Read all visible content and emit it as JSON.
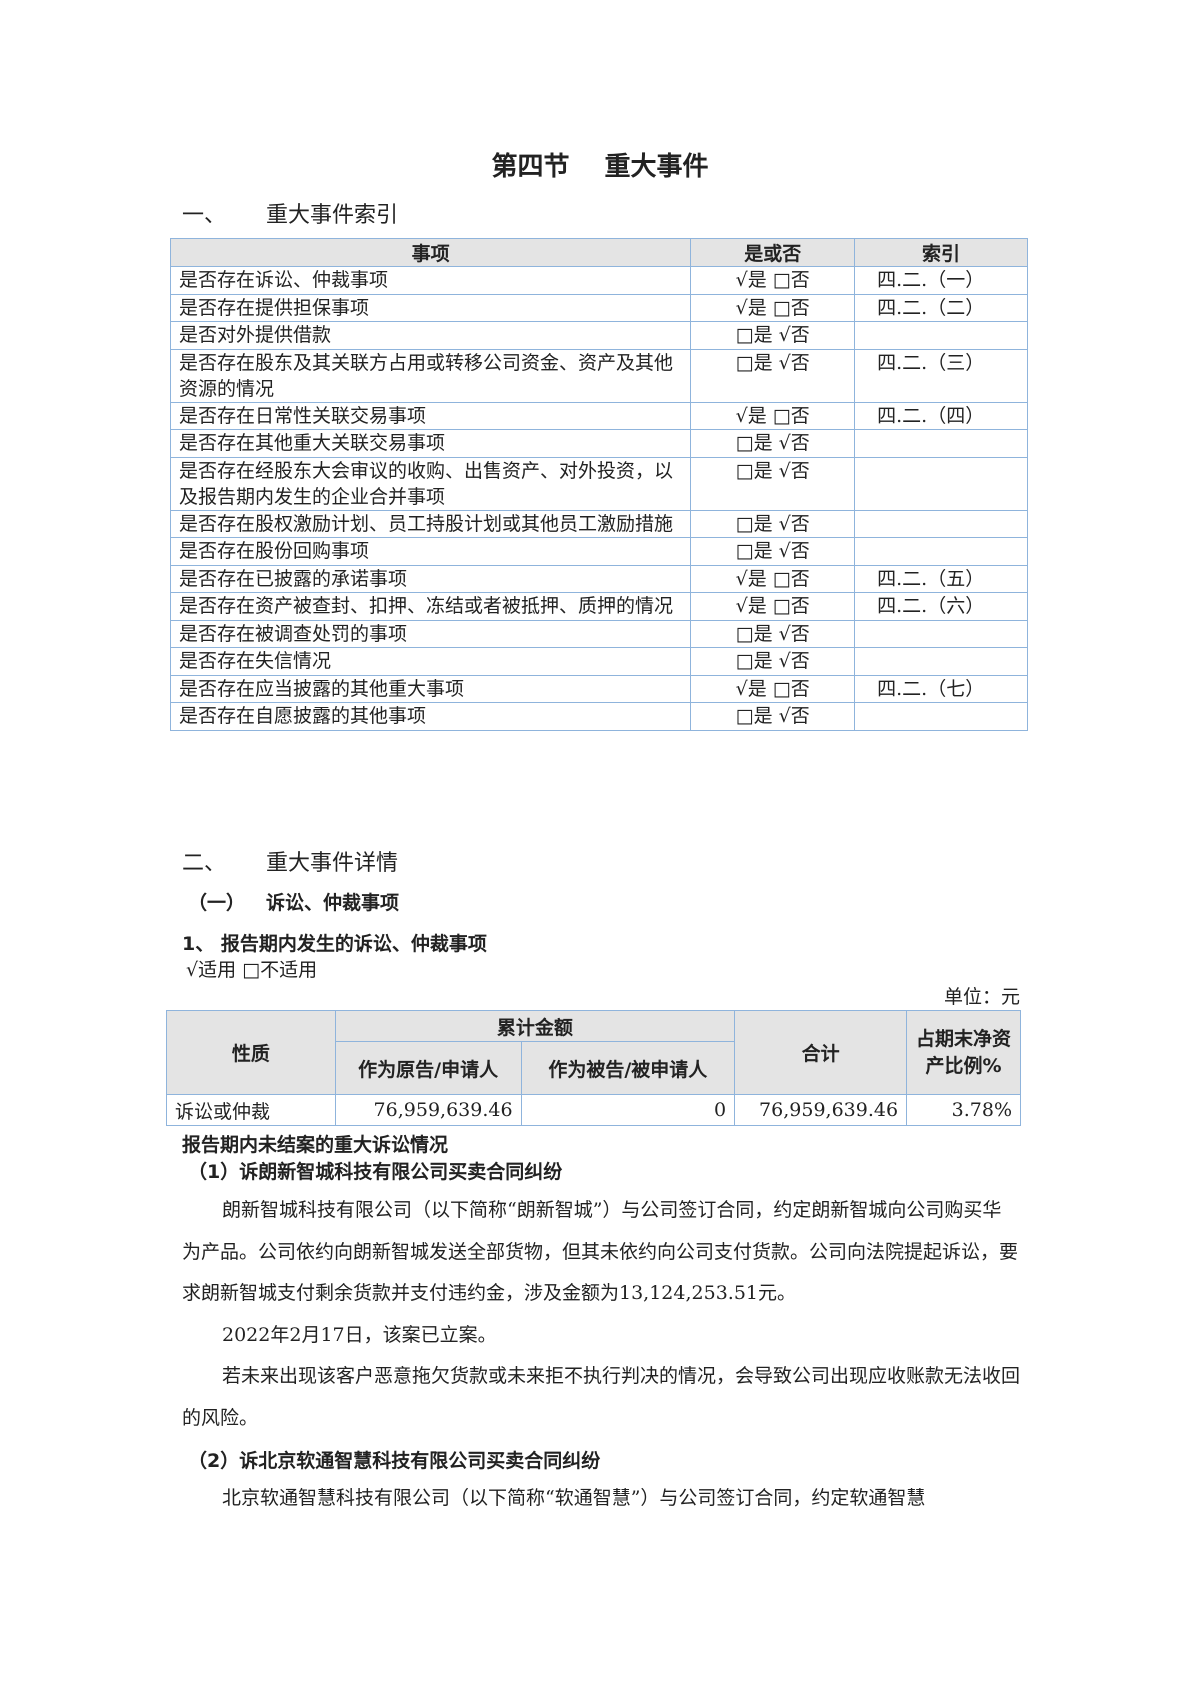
{
  "title": "第四节　 重大事件",
  "sec1": {
    "num": "一、",
    "title": "重大事件索引"
  },
  "index_table": {
    "headers": [
      "事项",
      "是或否",
      "索引"
    ],
    "rows": [
      {
        "item": "是否存在诉讼、仲裁事项",
        "yn": "√是 □否",
        "ref": "四.二.（一）"
      },
      {
        "item": "是否存在提供担保事项",
        "yn": "√是 □否",
        "ref": "四.二.（二）"
      },
      {
        "item": "是否对外提供借款",
        "yn": "□是 √否",
        "ref": ""
      },
      {
        "item": "是否存在股东及其关联方占用或转移公司资金、资产及其他资源的情况",
        "yn": "□是 √否",
        "ref": "四.二.（三）"
      },
      {
        "item": "是否存在日常性关联交易事项",
        "yn": "√是 □否",
        "ref": "四.二.（四）"
      },
      {
        "item": "是否存在其他重大关联交易事项",
        "yn": "□是 √否",
        "ref": ""
      },
      {
        "item": "是否存在经股东大会审议的收购、出售资产、对外投资，以及报告期内发生的企业合并事项",
        "yn": "□是 √否",
        "ref": ""
      },
      {
        "item": "是否存在股权激励计划、员工持股计划或其他员工激励措施",
        "yn": "□是 √否",
        "ref": ""
      },
      {
        "item": "是否存在股份回购事项",
        "yn": "□是 √否",
        "ref": ""
      },
      {
        "item": "是否存在已披露的承诺事项",
        "yn": "√是 □否",
        "ref": "四.二.（五）"
      },
      {
        "item": "是否存在资产被查封、扣押、冻结或者被抵押、质押的情况",
        "yn": "√是 □否",
        "ref": "四.二.（六）"
      },
      {
        "item": "是否存在被调查处罚的事项",
        "yn": "□是 √否",
        "ref": ""
      },
      {
        "item": "是否存在失信情况",
        "yn": "□是 √否",
        "ref": ""
      },
      {
        "item": "是否存在应当披露的其他重大事项",
        "yn": "√是 □否",
        "ref": "四.二.（七）"
      },
      {
        "item": "是否存在自愿披露的其他事项",
        "yn": "□是 √否",
        "ref": ""
      }
    ]
  },
  "sec2": {
    "num": "二、",
    "title": "重大事件详情"
  },
  "sub1": {
    "num": "（一）",
    "title": "诉讼、仲裁事项"
  },
  "sub1_1": "1、 报告期内发生的诉讼、仲裁事项",
  "applicable": "√适用 □不适用",
  "unit": "单位：元",
  "lit_table": {
    "h_nature": "性质",
    "h_cum": "累计金额",
    "h_plaintiff": "作为原告/申请人",
    "h_defendant": "作为被告/被申请人",
    "h_total": "合计",
    "h_ratio": "占期末净资产比例%",
    "row": {
      "nature": "诉讼或仲裁",
      "plaintiff": "76,959,639.46",
      "defendant": "0",
      "total": "76,959,639.46",
      "ratio": "3.78%"
    }
  },
  "unresolved_heading": "报告期内未结案的重大诉讼情况",
  "case1_title": "（1）诉朗新智城科技有限公司买卖合同纠纷",
  "case1_p1": "朗新智城科技有限公司（以下简称“朗新智城”）与公司签订合同，约定朗新智城向公司购买华为产品。公司依约向朗新智城发送全部货物，但其未依约向公司支付货款。公司向法院提起诉讼，要求朗新智城支付剩余货款并支付违约金，涉及金额为13,124,253.51元。",
  "case1_p2": "2022年2月17日，该案已立案。",
  "case1_p3": "若未来出现该客户恶意拖欠货款或未来拒不执行判决的情况，会导致公司出现应收账款无法收回的风险。",
  "case2_title": "（2）诉北京软通智慧科技有限公司买卖合同纠纷",
  "case2_p1": "北京软通智慧科技有限公司（以下简称“软通智慧”）与公司签订合同，约定软通智慧"
}
